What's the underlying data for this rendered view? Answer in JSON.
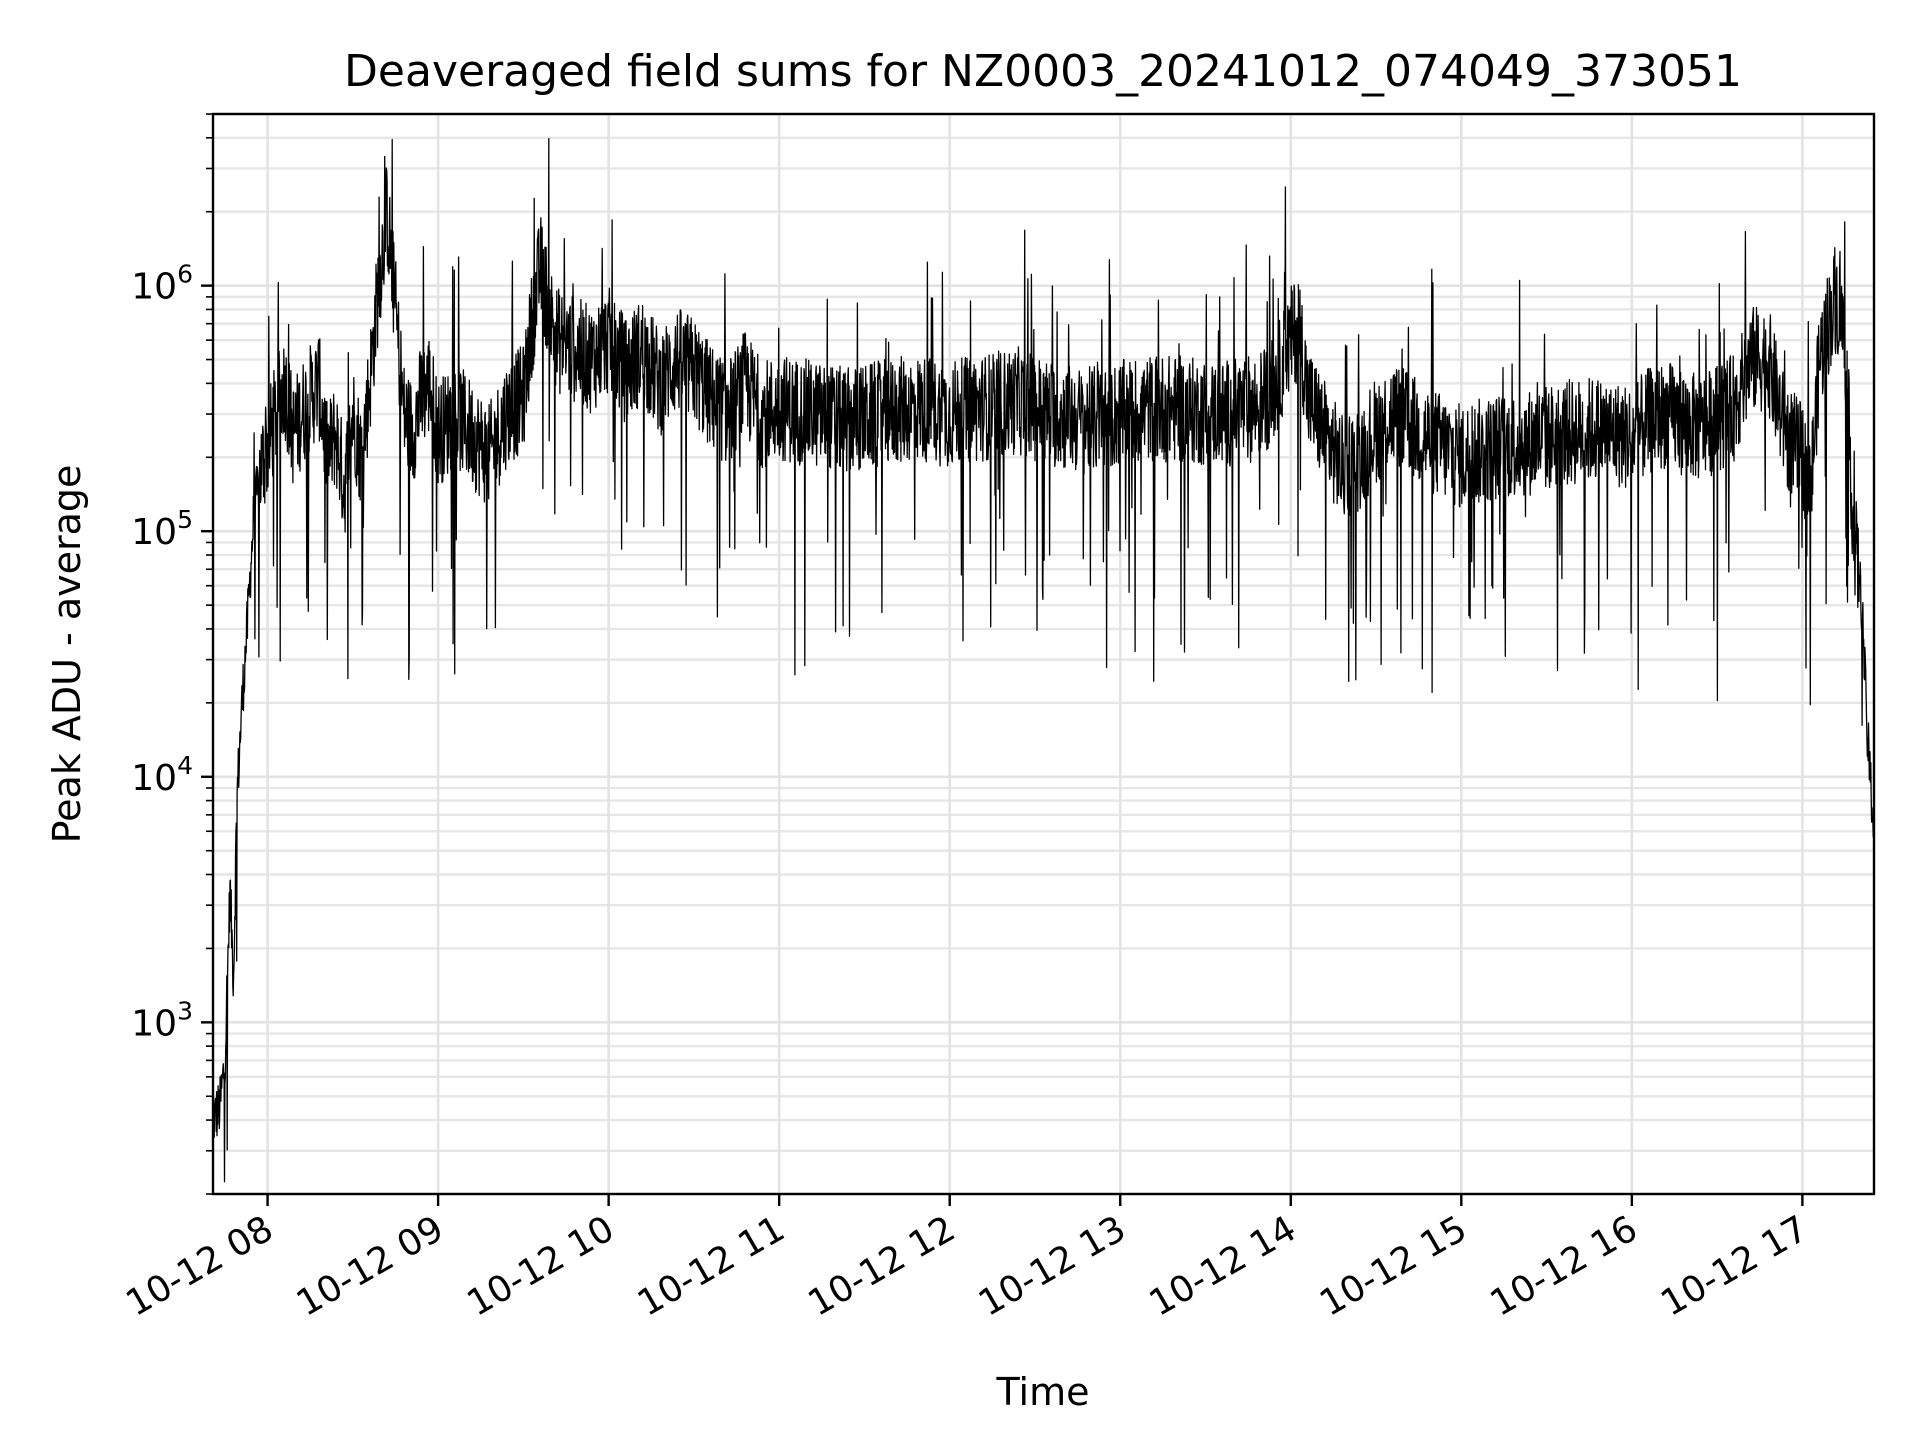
{
  "chart_data": {
    "type": "line",
    "title": "Deaveraged field sums for NZ0003_20241012_074049_373051",
    "xlabel": "Time",
    "ylabel": "Peak ADU - average",
    "yscale": "log",
    "ylim": [
      200,
      5000000
    ],
    "xlim_hours": [
      7.68,
      17.42
    ],
    "grid": true,
    "line_color": "#000000",
    "x_ticks": [
      {
        "hour": 8,
        "label": "10-12 08"
      },
      {
        "hour": 9,
        "label": "10-12 09"
      },
      {
        "hour": 10,
        "label": "10-12 10"
      },
      {
        "hour": 11,
        "label": "10-12 11"
      },
      {
        "hour": 12,
        "label": "10-12 12"
      },
      {
        "hour": 13,
        "label": "10-12 13"
      },
      {
        "hour": 14,
        "label": "10-12 14"
      },
      {
        "hour": 15,
        "label": "10-12 15"
      },
      {
        "hour": 16,
        "label": "10-12 16"
      },
      {
        "hour": 17,
        "label": "10-12 17"
      }
    ],
    "y_ticks": [
      {
        "value": 1000,
        "base": "10",
        "exp": "3"
      },
      {
        "value": 10000,
        "base": "10",
        "exp": "4"
      },
      {
        "value": 100000,
        "base": "10",
        "exp": "5"
      },
      {
        "value": 1000000,
        "base": "10",
        "exp": "6"
      }
    ],
    "series": [
      {
        "x_hours": [
          7.68,
          7.72,
          7.75,
          7.78,
          7.8,
          7.82,
          7.85,
          7.88,
          7.92,
          7.96,
          8.0,
          8.05,
          8.1,
          8.15,
          8.2,
          8.25,
          8.3,
          8.35,
          8.4,
          8.45,
          8.5,
          8.55,
          8.6,
          8.65,
          8.7,
          8.75,
          8.8,
          8.85,
          8.9,
          8.95,
          9.0,
          9.1,
          9.2,
          9.3,
          9.4,
          9.5,
          9.55,
          9.6,
          9.65,
          9.7,
          9.8,
          9.9,
          10.0,
          10.1,
          10.2,
          10.3,
          10.4,
          10.5,
          10.6,
          10.7,
          10.8,
          10.9,
          11.0,
          11.2,
          11.4,
          11.6,
          11.8,
          12.0,
          12.2,
          12.4,
          12.6,
          12.8,
          13.0,
          13.2,
          13.4,
          13.6,
          13.8,
          13.9,
          14.0,
          14.05,
          14.1,
          14.2,
          14.3,
          14.4,
          14.5,
          14.6,
          14.8,
          15.0,
          15.2,
          15.4,
          15.6,
          15.8,
          16.0,
          16.1,
          16.2,
          16.4,
          16.6,
          16.7,
          16.8,
          16.9,
          17.0,
          17.05,
          17.1,
          17.15,
          17.2,
          17.25,
          17.3,
          17.35,
          17.38,
          17.42
        ],
        "y": [
          400,
          450,
          700,
          3500,
          1500,
          8000,
          20000,
          40000,
          120000,
          180000,
          220000,
          300000,
          400000,
          250000,
          300000,
          350000,
          400000,
          200000,
          250000,
          150000,
          300000,
          200000,
          400000,
          1000000,
          2000000,
          800000,
          300000,
          250000,
          350000,
          400000,
          250000,
          300000,
          250000,
          200000,
          300000,
          350000,
          700000,
          1200000,
          800000,
          600000,
          550000,
          500000,
          600000,
          450000,
          550000,
          400000,
          500000,
          450000,
          350000,
          300000,
          400000,
          300000,
          320000,
          300000,
          280000,
          300000,
          320000,
          300000,
          320000,
          340000,
          300000,
          280000,
          300000,
          320000,
          310000,
          300000,
          320000,
          380000,
          600000,
          700000,
          350000,
          250000,
          180000,
          200000,
          260000,
          300000,
          240000,
          200000,
          220000,
          230000,
          250000,
          260000,
          240000,
          280000,
          300000,
          260000,
          320000,
          500000,
          500000,
          250000,
          200000,
          150000,
          500000,
          700000,
          900000,
          600000,
          100000,
          50000,
          15000,
          6000
        ],
        "noise": "dense high-frequency fluctuation about the trend"
      }
    ]
  }
}
